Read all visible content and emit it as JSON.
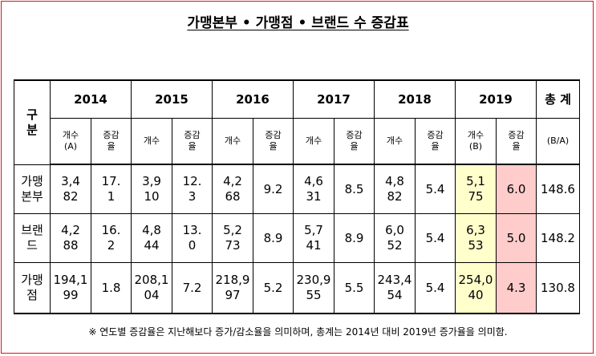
{
  "title": "가맹본부 • 가맹점 • 브랜드 수 증감표",
  "header": {
    "gubun_top": "구",
    "gubun_bottom": "분",
    "years": [
      "2014",
      "2015",
      "2016",
      "2017",
      "2018",
      "2019"
    ],
    "total_label": "총 계",
    "count_label": "개수",
    "count_label_a": "개수\n(A)",
    "count_label_b": "개수\n(B)",
    "rate_label": "증감\n율",
    "ratio_label": "(B/A)"
  },
  "rows": [
    {
      "category": "가맹\n본부",
      "cells": [
        "3,4\n82",
        "17.\n1",
        "3,9\n10",
        "12.\n3",
        "4,2\n68",
        "9.2",
        "4,6\n31",
        "8.5",
        "4,8\n82",
        "5.4",
        "5,1\n75",
        "6.0"
      ],
      "total": "148.6"
    },
    {
      "category": "브랜\n드",
      "cells": [
        "4,2\n88",
        "16.\n2",
        "4,8\n44",
        "13.\n0",
        "5,2\n73",
        "8.9",
        "5,7\n41",
        "8.9",
        "6,0\n52",
        "5.4",
        "6,3\n53",
        "5.0"
      ],
      "total": "148.2"
    },
    {
      "category": "가맹\n점",
      "cells": [
        "194,1\n99",
        "1.8",
        "208,1\n04",
        "7.2",
        "218,9\n97",
        "5.2",
        "230,9\n55",
        "5.5",
        "243,4\n54",
        "5.4",
        "254,0\n40",
        "4.3"
      ],
      "total": "130.8"
    }
  ],
  "note": "※ 연도별 증감율은 지난해보다 증가/감소율을 의미하며, 총계는 2014년 대비 2019년 증가율을 의미함.",
  "colors": {
    "border": "#d01818",
    "highlight_count": "#ffffcc",
    "highlight_rate": "#ffcccc"
  }
}
